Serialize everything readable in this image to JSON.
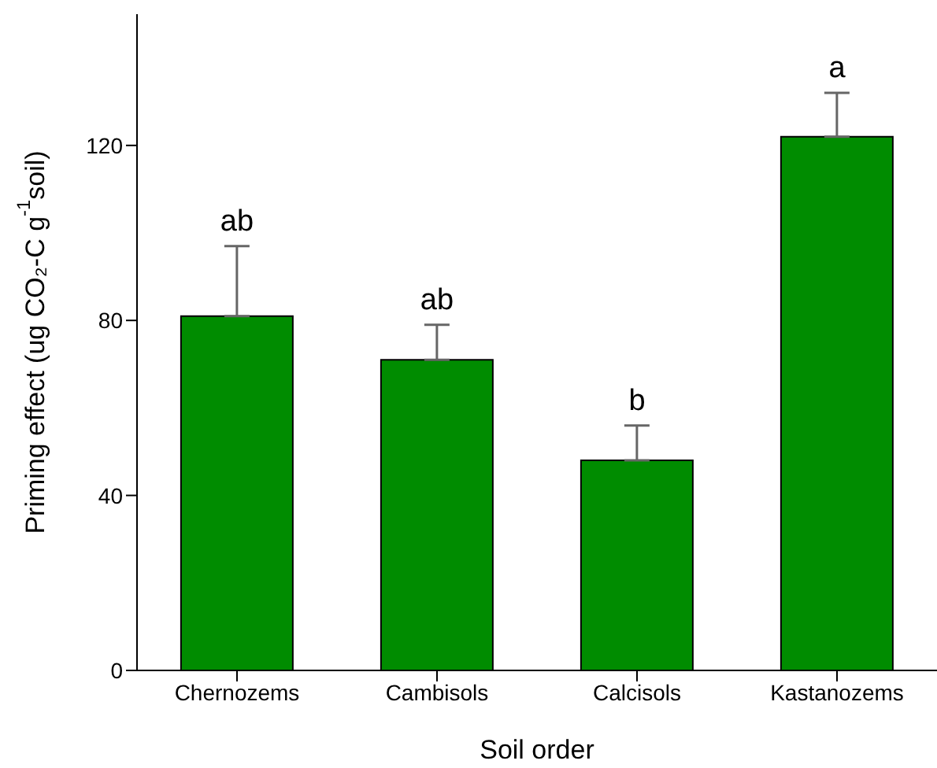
{
  "chart_data": {
    "type": "bar",
    "xlabel": "Soil order",
    "ylabel": "Priming effect (ug CO₂-C g$^{-1}$soil)",
    "categories": [
      "Chernozems",
      "Cambisols",
      "Calcisols",
      "Kastanozems"
    ],
    "values": [
      81,
      71,
      48,
      122
    ],
    "errors": [
      [
        81,
        97
      ],
      [
        71,
        79
      ],
      [
        48,
        56
      ],
      [
        122,
        132
      ]
    ],
    "color": "#008c00",
    "ylim": [
      0,
      150
    ],
    "yticks": [
      0,
      40,
      80,
      120
    ],
    "grid": false,
    "legend": false,
    "annotations": [
      {
        "text": "ab",
        "x": "Chernozems",
        "y": 97
      },
      {
        "text": "ab",
        "x": "Cambisols",
        "y": 79
      },
      {
        "text": "b",
        "x": "Calcisols",
        "y": 56
      },
      {
        "text": "a",
        "x": "Kastanozems",
        "y": 132
      }
    ]
  }
}
